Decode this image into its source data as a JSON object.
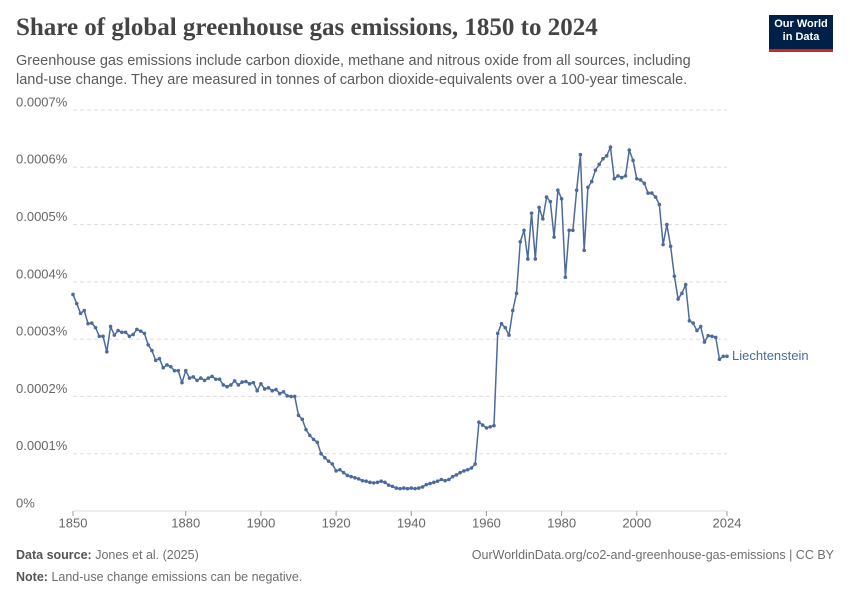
{
  "header": {
    "title": "Share of global greenhouse gas emissions, 1850 to 2024",
    "subtitle": "Greenhouse gas emissions include carbon dioxide, methane and nitrous oxide from all sources, including land-use change. They are measured in tonnes of carbon dioxide-equivalents over a 100-year timescale.",
    "logo": [
      "Our World",
      "in Data"
    ]
  },
  "footer": {
    "source_label": "Data source:",
    "source": "Jones et al. (2025)",
    "url": "OurWorldinData.org/co2-and-greenhouse-gas-emissions | CC BY",
    "note_label": "Note:",
    "note": "Land-use change emissions can be negative."
  },
  "chart_data": {
    "type": "line",
    "x": [
      1850,
      1851,
      1852,
      1853,
      1854,
      1855,
      1856,
      1857,
      1858,
      1859,
      1860,
      1861,
      1862,
      1863,
      1864,
      1865,
      1866,
      1867,
      1868,
      1869,
      1870,
      1871,
      1872,
      1873,
      1874,
      1875,
      1876,
      1877,
      1878,
      1879,
      1880,
      1881,
      1882,
      1883,
      1884,
      1885,
      1886,
      1887,
      1888,
      1889,
      1890,
      1891,
      1892,
      1893,
      1894,
      1895,
      1896,
      1897,
      1898,
      1899,
      1900,
      1901,
      1902,
      1903,
      1904,
      1905,
      1906,
      1907,
      1908,
      1909,
      1910,
      1911,
      1912,
      1913,
      1914,
      1915,
      1916,
      1917,
      1918,
      1919,
      1920,
      1921,
      1922,
      1923,
      1924,
      1925,
      1926,
      1927,
      1928,
      1929,
      1930,
      1931,
      1932,
      1933,
      1934,
      1935,
      1936,
      1937,
      1938,
      1939,
      1940,
      1941,
      1942,
      1943,
      1944,
      1945,
      1946,
      1947,
      1948,
      1949,
      1950,
      1951,
      1952,
      1953,
      1954,
      1955,
      1956,
      1957,
      1958,
      1959,
      1960,
      1961,
      1962,
      1963,
      1964,
      1965,
      1966,
      1967,
      1968,
      1969,
      1970,
      1971,
      1972,
      1973,
      1974,
      1975,
      1976,
      1977,
      1978,
      1979,
      1980,
      1981,
      1982,
      1983,
      1984,
      1985,
      1986,
      1987,
      1988,
      1989,
      1990,
      1991,
      1992,
      1993,
      1994,
      1995,
      1996,
      1997,
      1998,
      1999,
      2000,
      2001,
      2002,
      2003,
      2004,
      2005,
      2006,
      2007,
      2008,
      2009,
      2010,
      2011,
      2012,
      2013,
      2014,
      2015,
      2016,
      2017,
      2018,
      2019,
      2020,
      2021,
      2022,
      2023,
      2024
    ],
    "series": [
      {
        "name": "Liechtenstein",
        "color": "#4c6a9c",
        "values": [
          0.000378,
          0.000362,
          0.000345,
          0.00035,
          0.000327,
          0.000328,
          0.00032,
          0.000305,
          0.000305,
          0.000278,
          0.000322,
          0.000307,
          0.000315,
          0.000312,
          0.000312,
          0.000305,
          0.000308,
          0.000317,
          0.000314,
          0.00031,
          0.00029,
          0.00028,
          0.000263,
          0.000266,
          0.00025,
          0.000255,
          0.000252,
          0.000245,
          0.000245,
          0.000224,
          0.000245,
          0.000232,
          0.000234,
          0.000228,
          0.000232,
          0.000228,
          0.000232,
          0.000235,
          0.00023,
          0.00023,
          0.00022,
          0.000217,
          0.00022,
          0.000227,
          0.00022,
          0.000225,
          0.000226,
          0.000222,
          0.000224,
          0.00021,
          0.000222,
          0.000213,
          0.000215,
          0.00021,
          0.000212,
          0.000205,
          0.000208,
          0.000201,
          0.0002,
          0.0002,
          0.000167,
          0.00016,
          0.000142,
          0.000132,
          0.000125,
          0.00012,
          0.0001,
          9.3e-05,
          8.7e-05,
          8.2e-05,
          7e-05,
          7.2e-05,
          6.7e-05,
          6.2e-05,
          6e-05,
          5.8e-05,
          5.6e-05,
          5.3e-05,
          5.2e-05,
          5e-05,
          4.9e-05,
          5e-05,
          5.2e-05,
          5e-05,
          4.5e-05,
          4.3e-05,
          4e-05,
          3.9e-05,
          4e-05,
          3.9e-05,
          4e-05,
          3.9e-05,
          4e-05,
          4.2e-05,
          4.6e-05,
          4.8e-05,
          5e-05,
          5.2e-05,
          5.5e-05,
          5.3e-05,
          5.5e-05,
          6e-05,
          6.3e-05,
          6.7e-05,
          7e-05,
          7.2e-05,
          7.5e-05,
          8.2e-05,
          0.000155,
          0.00015,
          0.000145,
          0.000147,
          0.000149,
          0.00031,
          0.000327,
          0.00032,
          0.000307,
          0.00035,
          0.00038,
          0.00047,
          0.00049,
          0.00044,
          0.00052,
          0.00044,
          0.00053,
          0.00051,
          0.000548,
          0.00054,
          0.000478,
          0.00056,
          0.000545,
          0.000408,
          0.00049,
          0.00049,
          0.00056,
          0.000622,
          0.000455,
          0.000565,
          0.000575,
          0.000595,
          0.000605,
          0.000615,
          0.00062,
          0.000635,
          0.00058,
          0.000585,
          0.000582,
          0.000585,
          0.00063,
          0.000612,
          0.00058,
          0.000578,
          0.000572,
          0.000555,
          0.000555,
          0.000548,
          0.000535,
          0.000465,
          0.0005,
          0.000462,
          0.00041,
          0.00037,
          0.00038,
          0.000395,
          0.000332,
          0.000328,
          0.000315,
          0.000322,
          0.000295,
          0.000306,
          0.000305,
          0.000303,
          0.000265,
          0.00027,
          0.00027
        ]
      }
    ],
    "xlim": [
      1850,
      2024
    ],
    "xticks": [
      1850,
      1880,
      1900,
      1920,
      1940,
      1960,
      1980,
      2000,
      2024
    ],
    "ylim": [
      0,
      0.0007
    ],
    "yticks": [
      {
        "value": 0,
        "label": "0%"
      },
      {
        "value": 0.0001,
        "label": "0.0001%"
      },
      {
        "value": 0.0002,
        "label": "0.0002%"
      },
      {
        "value": 0.0003,
        "label": "0.0003%"
      },
      {
        "value": 0.0004,
        "label": "0.0004%"
      },
      {
        "value": 0.0005,
        "label": "0.0005%"
      },
      {
        "value": 0.0006,
        "label": "0.0006%"
      },
      {
        "value": 0.0007,
        "label": "0.0007%"
      }
    ],
    "grid": true
  }
}
